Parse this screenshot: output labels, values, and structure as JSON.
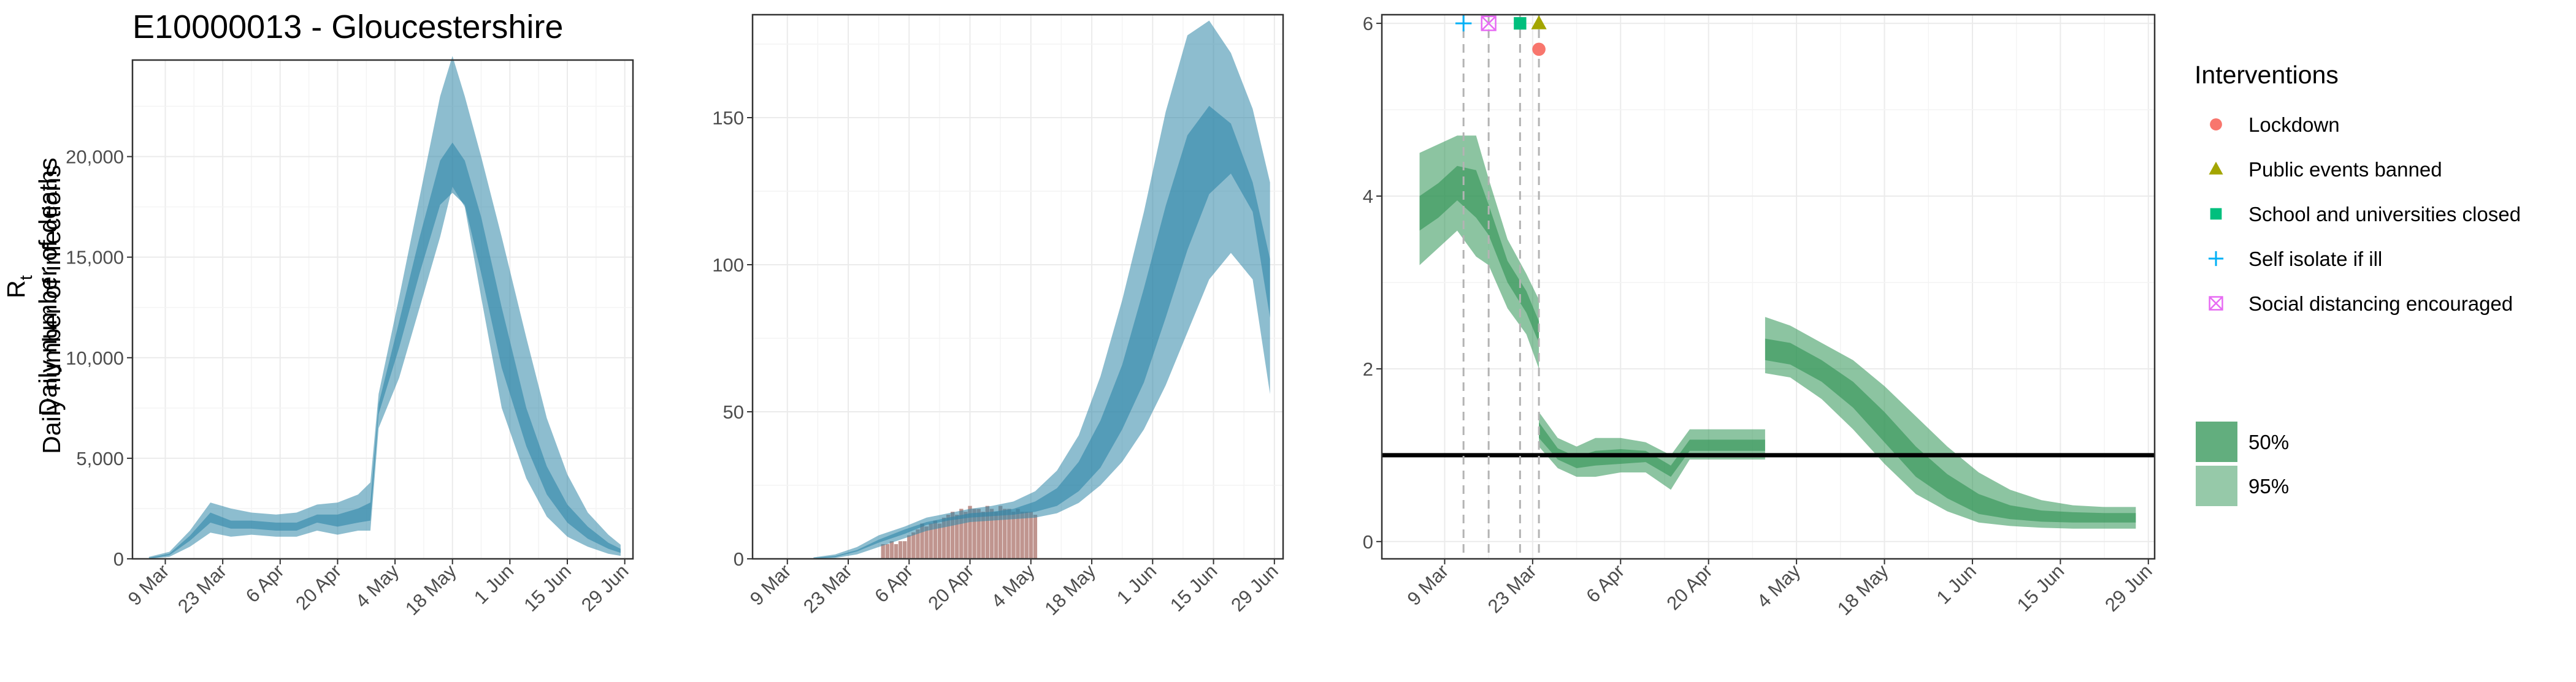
{
  "colors": {
    "infections": "#2f86a8",
    "deaths_bar": "#b5837b",
    "rt": "#2e9353",
    "lockdown": "#f8766d",
    "public_events": "#a3a500",
    "school": "#00bf7d",
    "self_isolate": "#00b0f6",
    "social_distancing": "#e76bf3"
  },
  "chart_data": [
    {
      "type": "area",
      "title": "E10000013 - Gloucestershire",
      "ylabel": "Daily number of infections",
      "xlabel": "",
      "ylim": [
        0,
        24800
      ],
      "xlim": [
        "2020-03-01",
        "2020-07-01"
      ],
      "grid": true,
      "x_ticks": [
        "2020-03-09",
        "2020-03-23",
        "2020-04-06",
        "2020-04-20",
        "2020-05-04",
        "2020-05-18",
        "2020-06-01",
        "2020-06-15",
        "2020-06-29"
      ],
      "x_tick_labels": [
        "9 Mar",
        "23 Mar",
        "6 Apr",
        "20 Apr",
        "4 May",
        "18 May",
        "1 Jun",
        "15 Jun",
        "29 Jun"
      ],
      "y_ticks": [
        0,
        5000,
        10000,
        15000,
        20000
      ],
      "y_tick_labels": [
        "0",
        "5,000",
        "10,000",
        "15,000",
        "20,000"
      ],
      "series": [
        {
          "band": "95%",
          "x": [
            "2020-03-05",
            "2020-03-10",
            "2020-03-15",
            "2020-03-20",
            "2020-03-25",
            "2020-03-30",
            "2020-04-05",
            "2020-04-10",
            "2020-04-15",
            "2020-04-20",
            "2020-04-25",
            "2020-04-28",
            "2020-04-30",
            "2020-05-05",
            "2020-05-10",
            "2020-05-15",
            "2020-05-18",
            "2020-05-21",
            "2020-05-25",
            "2020-05-30",
            "2020-06-05",
            "2020-06-10",
            "2020-06-15",
            "2020-06-20",
            "2020-06-25",
            "2020-06-28"
          ],
          "lower": [
            0,
            100,
            600,
            1300,
            1100,
            1200,
            1100,
            1100,
            1400,
            1200,
            1400,
            1400,
            6500,
            9000,
            12500,
            16000,
            18500,
            17500,
            13000,
            7500,
            4000,
            2100,
            1100,
            600,
            250,
            150
          ],
          "upper": [
            100,
            350,
            1400,
            2800,
            2500,
            2300,
            2200,
            2300,
            2700,
            2800,
            3200,
            3800,
            8200,
            13000,
            18000,
            23000,
            25000,
            23000,
            20000,
            16000,
            11000,
            7000,
            4200,
            2300,
            1200,
            700
          ]
        },
        {
          "band": "50%",
          "x": [
            "2020-03-05",
            "2020-03-10",
            "2020-03-15",
            "2020-03-20",
            "2020-03-25",
            "2020-03-30",
            "2020-04-05",
            "2020-04-10",
            "2020-04-15",
            "2020-04-20",
            "2020-04-25",
            "2020-04-28",
            "2020-04-30",
            "2020-05-05",
            "2020-05-10",
            "2020-05-15",
            "2020-05-18",
            "2020-05-21",
            "2020-05-25",
            "2020-05-30",
            "2020-06-05",
            "2020-06-10",
            "2020-06-15",
            "2020-06-20",
            "2020-06-25",
            "2020-06-28"
          ],
          "lower": [
            0,
            180,
            900,
            1800,
            1500,
            1500,
            1400,
            1400,
            1800,
            1600,
            1800,
            1900,
            7200,
            10500,
            14200,
            17600,
            18200,
            17600,
            14200,
            9500,
            5600,
            3200,
            1800,
            1000,
            500,
            300
          ],
          "upper": [
            50,
            260,
            1150,
            2300,
            1900,
            1900,
            1800,
            1800,
            2200,
            2200,
            2500,
            2800,
            7700,
            11800,
            16000,
            19800,
            20700,
            19800,
            17000,
            12500,
            7500,
            4600,
            2700,
            1600,
            800,
            500
          ]
        }
      ]
    },
    {
      "type": "area",
      "title": "",
      "ylabel": "Daily number of deaths",
      "xlabel": "",
      "ylim": [
        0,
        185
      ],
      "xlim": [
        "2020-03-01",
        "2020-07-01"
      ],
      "grid": true,
      "x_ticks": [
        "2020-03-09",
        "2020-03-23",
        "2020-04-06",
        "2020-04-20",
        "2020-05-04",
        "2020-05-18",
        "2020-06-01",
        "2020-06-15",
        "2020-06-29"
      ],
      "x_tick_labels": [
        "9 Mar",
        "23 Mar",
        "6 Apr",
        "20 Apr",
        "4 May",
        "18 May",
        "1 Jun",
        "15 Jun",
        "29 Jun"
      ],
      "y_ticks": [
        0,
        50,
        100,
        150
      ],
      "y_tick_labels": [
        "0",
        "50",
        "100",
        "150"
      ],
      "bars": {
        "dates": [
          "2020-03-31",
          "2020-04-01",
          "2020-04-02",
          "2020-04-03",
          "2020-04-04",
          "2020-04-05",
          "2020-04-06",
          "2020-04-07",
          "2020-04-08",
          "2020-04-09",
          "2020-04-10",
          "2020-04-11",
          "2020-04-12",
          "2020-04-13",
          "2020-04-14",
          "2020-04-15",
          "2020-04-16",
          "2020-04-17",
          "2020-04-18",
          "2020-04-19",
          "2020-04-20",
          "2020-04-21",
          "2020-04-22",
          "2020-04-23",
          "2020-04-24",
          "2020-04-25",
          "2020-04-26",
          "2020-04-27",
          "2020-04-28",
          "2020-04-29",
          "2020-04-30",
          "2020-05-01",
          "2020-05-02",
          "2020-05-03",
          "2020-05-04",
          "2020-05-05"
        ],
        "values": [
          5,
          5,
          6,
          5,
          6,
          6,
          8,
          9,
          10,
          12,
          11,
          12,
          13,
          12,
          14,
          15,
          16,
          15,
          17,
          16,
          18,
          17,
          17,
          16,
          18,
          17,
          16,
          18,
          17,
          17,
          16,
          17,
          16,
          16,
          16,
          15
        ]
      },
      "series": [
        {
          "band": "95%",
          "x": [
            "2020-03-15",
            "2020-03-20",
            "2020-03-25",
            "2020-03-30",
            "2020-04-05",
            "2020-04-10",
            "2020-04-15",
            "2020-04-20",
            "2020-04-25",
            "2020-04-30",
            "2020-05-05",
            "2020-05-10",
            "2020-05-15",
            "2020-05-20",
            "2020-05-25",
            "2020-05-30",
            "2020-06-04",
            "2020-06-09",
            "2020-06-14",
            "2020-06-19",
            "2020-06-24",
            "2020-06-28"
          ],
          "lower": [
            0,
            0.3,
            1.5,
            4,
            7,
            9.5,
            11,
            12.5,
            13,
            13.5,
            14,
            15.5,
            19,
            25,
            33,
            44,
            59,
            77,
            95,
            104,
            95,
            56
          ],
          "upper": [
            0.5,
            1.5,
            4,
            8,
            11,
            14,
            15.5,
            17,
            18,
            19.5,
            23,
            30,
            42,
            62,
            88,
            118,
            152,
            178,
            183,
            172,
            153,
            128
          ]
        },
        {
          "band": "50%",
          "x": [
            "2020-03-15",
            "2020-03-20",
            "2020-03-25",
            "2020-03-30",
            "2020-04-05",
            "2020-04-10",
            "2020-04-15",
            "2020-04-20",
            "2020-04-25",
            "2020-04-30",
            "2020-05-05",
            "2020-05-10",
            "2020-05-15",
            "2020-05-20",
            "2020-05-25",
            "2020-05-30",
            "2020-06-04",
            "2020-06-09",
            "2020-06-14",
            "2020-06-19",
            "2020-06-24",
            "2020-06-28"
          ],
          "lower": [
            0,
            0.6,
            2.5,
            5.5,
            8.5,
            11.5,
            13,
            14,
            14.5,
            15,
            16,
            18,
            23,
            31,
            44,
            60,
            82,
            105,
            124,
            131,
            118,
            82
          ],
          "upper": [
            0.3,
            1,
            3,
            6.5,
            10,
            12.5,
            14,
            15.5,
            16,
            17,
            19.5,
            24,
            33,
            47,
            66,
            92,
            120,
            144,
            154,
            148,
            128,
            102
          ]
        }
      ]
    },
    {
      "type": "area",
      "title": "",
      "ylabel": "R",
      "ylabel_sub": "t",
      "xlabel": "",
      "ylim": [
        -0.2,
        6.1
      ],
      "xlim": [
        "2020-02-28",
        "2020-06-30"
      ],
      "grid": true,
      "x_ticks": [
        "2020-03-09",
        "2020-03-23",
        "2020-04-06",
        "2020-04-20",
        "2020-05-04",
        "2020-05-18",
        "2020-06-01",
        "2020-06-15",
        "2020-06-29"
      ],
      "x_tick_labels": [
        "9 Mar",
        "23 Mar",
        "6 Apr",
        "20 Apr",
        "4 May",
        "18 May",
        "1 Jun",
        "15 Jun",
        "29 Jun"
      ],
      "y_ticks": [
        0,
        2,
        4,
        6
      ],
      "y_tick_labels": [
        "0",
        "2",
        "4",
        "6"
      ],
      "reference_line": 1,
      "series": [
        {
          "band": "95%",
          "x": [
            "2020-03-05",
            "2020-03-08",
            "2020-03-11",
            "2020-03-14",
            "2020-03-16",
            "2020-03-19",
            "2020-03-22",
            "2020-03-24",
            "2020-03-24",
            "2020-03-27",
            "2020-03-30",
            "2020-04-02",
            "2020-04-06",
            "2020-04-10",
            "2020-04-14",
            "2020-04-17",
            "2020-04-20",
            "2020-04-24",
            "2020-04-29",
            "2020-04-29",
            "2020-05-03",
            "2020-05-08",
            "2020-05-13",
            "2020-05-18",
            "2020-05-23",
            "2020-05-28",
            "2020-06-02",
            "2020-06-07",
            "2020-06-12",
            "2020-06-17",
            "2020-06-22",
            "2020-06-27"
          ],
          "lower": [
            3.2,
            3.4,
            3.6,
            3.3,
            3.2,
            2.7,
            2.4,
            2.0,
            1.1,
            0.85,
            0.75,
            0.75,
            0.8,
            0.8,
            0.6,
            0.95,
            0.95,
            0.95,
            0.95,
            1.95,
            1.9,
            1.65,
            1.3,
            0.9,
            0.55,
            0.35,
            0.22,
            0.18,
            0.16,
            0.15,
            0.15,
            0.15
          ],
          "upper": [
            4.5,
            4.6,
            4.7,
            4.7,
            4.2,
            3.5,
            3.1,
            2.8,
            1.5,
            1.2,
            1.1,
            1.2,
            1.2,
            1.15,
            1.0,
            1.3,
            1.3,
            1.3,
            1.3,
            2.6,
            2.5,
            2.3,
            2.1,
            1.8,
            1.45,
            1.1,
            0.8,
            0.6,
            0.48,
            0.42,
            0.4,
            0.4
          ]
        },
        {
          "band": "50%",
          "x": [
            "2020-03-05",
            "2020-03-08",
            "2020-03-11",
            "2020-03-14",
            "2020-03-16",
            "2020-03-19",
            "2020-03-22",
            "2020-03-24",
            "2020-03-24",
            "2020-03-27",
            "2020-03-30",
            "2020-04-02",
            "2020-04-06",
            "2020-04-10",
            "2020-04-14",
            "2020-04-17",
            "2020-04-20",
            "2020-04-24",
            "2020-04-29",
            "2020-04-29",
            "2020-05-03",
            "2020-05-08",
            "2020-05-13",
            "2020-05-18",
            "2020-05-23",
            "2020-05-28",
            "2020-06-02",
            "2020-06-07",
            "2020-06-12",
            "2020-06-17",
            "2020-06-22",
            "2020-06-27"
          ],
          "lower": [
            3.6,
            3.75,
            3.95,
            3.75,
            3.55,
            3.0,
            2.65,
            2.3,
            1.2,
            0.95,
            0.85,
            0.88,
            0.9,
            0.92,
            0.75,
            1.05,
            1.05,
            1.05,
            1.05,
            2.1,
            2.05,
            1.85,
            1.55,
            1.15,
            0.75,
            0.5,
            0.32,
            0.26,
            0.23,
            0.22,
            0.22,
            0.22
          ],
          "upper": [
            4.0,
            4.15,
            4.35,
            4.3,
            3.9,
            3.25,
            2.9,
            2.55,
            1.38,
            1.08,
            0.98,
            1.05,
            1.07,
            1.05,
            0.88,
            1.18,
            1.18,
            1.18,
            1.18,
            2.35,
            2.3,
            2.1,
            1.85,
            1.5,
            1.1,
            0.78,
            0.55,
            0.42,
            0.36,
            0.34,
            0.33,
            0.33
          ]
        }
      ],
      "interventions": [
        {
          "key": "self_isolate",
          "date": "2020-03-12",
          "y": 6.0
        },
        {
          "key": "social_distancing",
          "date": "2020-03-16",
          "y": 6.0
        },
        {
          "key": "school",
          "date": "2020-03-21",
          "y": 6.0
        },
        {
          "key": "public_events",
          "date": "2020-03-24",
          "y": 6.0
        },
        {
          "key": "lockdown",
          "date": "2020-03-24",
          "y": 5.7
        }
      ]
    }
  ],
  "legend": {
    "title": "Interventions",
    "items": [
      {
        "key": "lockdown",
        "label": "Lockdown",
        "shape": "circle-icon"
      },
      {
        "key": "public_events",
        "label": "Public events banned",
        "shape": "triangle-icon"
      },
      {
        "key": "school",
        "label": "School and universities closed",
        "shape": "square-icon"
      },
      {
        "key": "self_isolate",
        "label": "Self isolate if ill",
        "shape": "plus-icon"
      },
      {
        "key": "social_distancing",
        "label": "Social distancing encouraged",
        "shape": "boxed-x-icon"
      }
    ],
    "bands": [
      {
        "label": "50%"
      },
      {
        "label": "95%"
      }
    ]
  }
}
